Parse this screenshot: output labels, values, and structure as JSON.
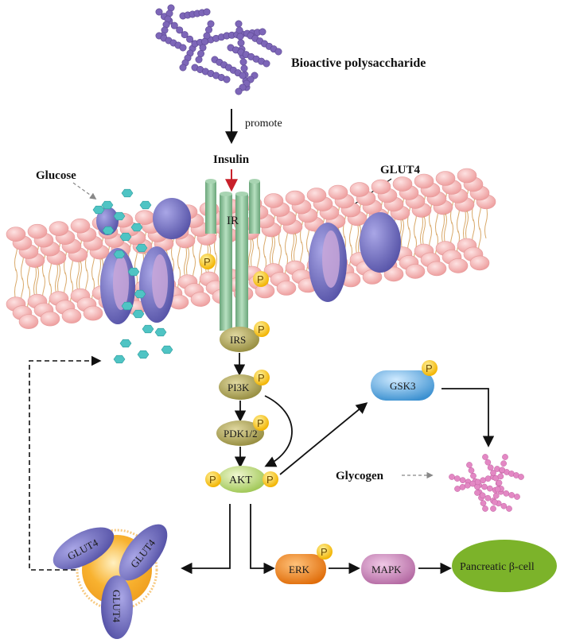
{
  "labels": {
    "polysaccharide": "Bioactive polysaccharide",
    "promote": "promote",
    "insulin": "Insulin",
    "glucose": "Glucose",
    "glut4_membrane": "GLUT4",
    "receptor": "IR",
    "glycogen": "Glycogen"
  },
  "nodes": {
    "irs": "IRS",
    "pi3k": "PI3K",
    "pdk": "PDK1/2",
    "akt": "AKT",
    "gsk3": "GSK3",
    "erk": "ERK",
    "mapk": "MAPK",
    "beta_cell": "Pancreatic β-cell"
  },
  "vesicle": {
    "glut_left": "GLUT4",
    "glut_right": "GLUT4",
    "glut_bottom": "GLUT4"
  },
  "phospho": "P",
  "colors": {
    "lipid_head": "#f3b3b3",
    "lipid_tail": "#d9a96a",
    "glut_purple": "#7b78c8",
    "receptor_green": "#8fc59b",
    "phospho_yellow": "#f5c518",
    "glucose_teal": "#4fc4c4",
    "polysaccharide_purple": "#7d66b8",
    "glycogen_pink": "#e388c4",
    "erk_orange": "#ee7d1a",
    "mapk_mauve": "#c77fb5",
    "gsk3_blue": "#4a9fd8",
    "beta_cell_green": "#7cb32a",
    "insulin_arrow_red": "#c8202a"
  }
}
